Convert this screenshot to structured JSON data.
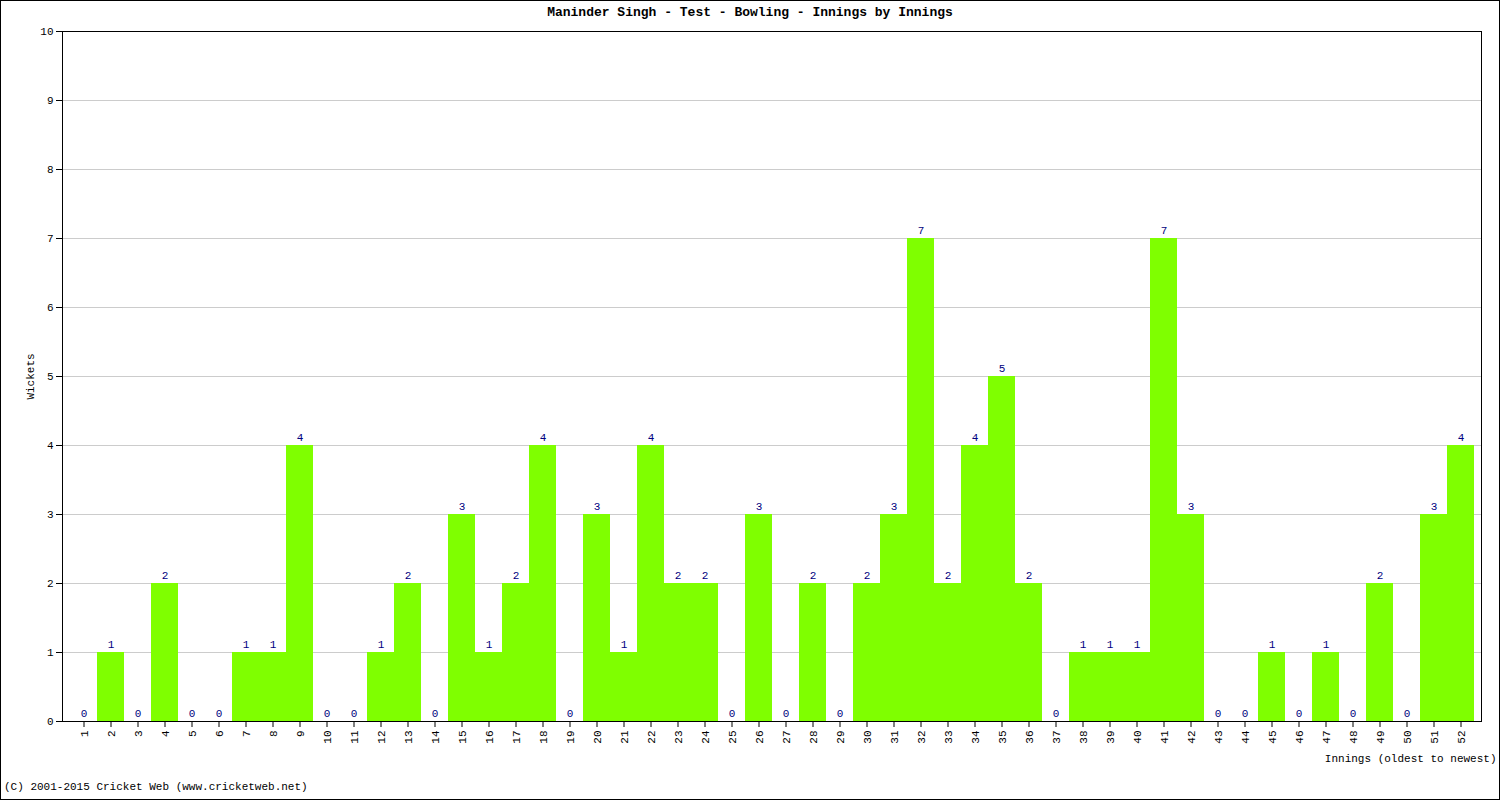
{
  "chart_data": {
    "type": "bar",
    "title": "Maninder Singh - Test - Bowling - Innings by Innings",
    "x_label": "Innings (oldest to newest)",
    "y_label": "Wickets",
    "caption": "(C) 2001-2015 Cricket Web (www.cricketweb.net)",
    "categories": [
      "1",
      "2",
      "3",
      "4",
      "5",
      "6",
      "7",
      "8",
      "9",
      "10",
      "11",
      "12",
      "13",
      "14",
      "15",
      "16",
      "17",
      "18",
      "19",
      "20",
      "21",
      "22",
      "23",
      "24",
      "25",
      "26",
      "27",
      "28",
      "29",
      "30",
      "31",
      "32",
      "33",
      "34",
      "35",
      "36",
      "37",
      "38",
      "39",
      "40",
      "41",
      "42",
      "43",
      "44",
      "45",
      "46",
      "47",
      "48",
      "49",
      "50",
      "51",
      "52"
    ],
    "values": [
      0,
      1,
      0,
      2,
      0,
      0,
      1,
      1,
      4,
      0,
      0,
      1,
      2,
      0,
      3,
      1,
      2,
      4,
      0,
      3,
      1,
      4,
      2,
      2,
      0,
      3,
      0,
      2,
      0,
      2,
      3,
      7,
      2,
      4,
      5,
      2,
      0,
      1,
      1,
      1,
      7,
      3,
      0,
      0,
      1,
      0,
      1,
      0,
      2,
      0,
      3,
      4
    ],
    "color": "#7fff00",
    "ylim": [
      0,
      10
    ],
    "yticks": [
      0,
      1,
      2,
      3,
      4,
      5,
      6,
      7,
      8,
      9,
      10
    ],
    "grid": true,
    "data_labels": true
  }
}
